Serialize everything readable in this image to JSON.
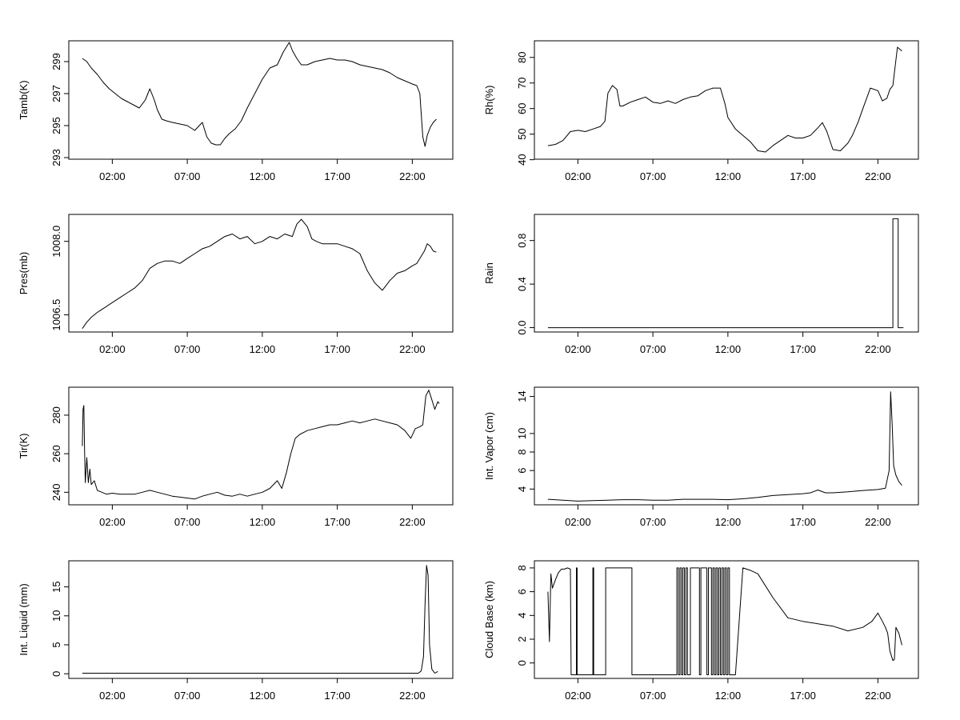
{
  "chart_data": [
    {
      "type": "line",
      "ylabel": "Tamb(K)",
      "xlabel": "",
      "x_ticks": [
        "02:00",
        "07:00",
        "12:00",
        "17:00",
        "22:00"
      ],
      "x_tick_hours": [
        2,
        7,
        12,
        17,
        22
      ],
      "xlim_hours": [
        -0.9,
        24.7
      ],
      "y_ticks": [
        "293",
        "295",
        "297",
        "299"
      ],
      "y_tick_values": [
        293,
        295,
        297,
        299
      ],
      "ylim": [
        292.9,
        300.3
      ],
      "series": [
        {
          "x": [
            0.0,
            0.3,
            0.6,
            1.0,
            1.4,
            1.8,
            2.2,
            2.6,
            3.0,
            3.4,
            3.8,
            4.2,
            4.5,
            4.8,
            5.0,
            5.3,
            5.6,
            6.0,
            6.5,
            7.0,
            7.5,
            8.0,
            8.3,
            8.6,
            8.9,
            9.2,
            9.5,
            9.8,
            10.2,
            10.6,
            11.0,
            11.5,
            12.0,
            12.5,
            13.0,
            13.4,
            13.8,
            14.0,
            14.3,
            14.6,
            15.0,
            15.5,
            16.0,
            16.5,
            17.0,
            17.5,
            18.0,
            18.5,
            19.0,
            19.5,
            20.0,
            20.5,
            21.0,
            21.5,
            22.0,
            22.3,
            22.5,
            22.7,
            22.85,
            23.0,
            23.2,
            23.4,
            23.6
          ],
          "y": [
            299.2,
            299.0,
            298.6,
            298.2,
            297.7,
            297.3,
            297.0,
            296.7,
            296.5,
            296.3,
            296.1,
            296.6,
            297.3,
            296.6,
            296.0,
            295.4,
            295.3,
            295.2,
            295.1,
            295.0,
            294.7,
            295.2,
            294.3,
            293.9,
            293.8,
            293.8,
            294.2,
            294.5,
            294.8,
            295.3,
            296.1,
            297.0,
            297.9,
            298.6,
            298.8,
            299.6,
            300.2,
            299.7,
            299.2,
            298.8,
            298.8,
            299.0,
            299.1,
            299.2,
            299.1,
            299.1,
            299.0,
            298.8,
            298.7,
            298.6,
            298.5,
            298.3,
            298.0,
            297.8,
            297.6,
            297.5,
            297.0,
            294.3,
            293.7,
            294.4,
            294.9,
            295.2,
            295.4
          ]
        }
      ]
    },
    {
      "type": "line",
      "ylabel": "Rh(%)",
      "xlabel": "",
      "x_ticks": [
        "02:00",
        "07:00",
        "12:00",
        "17:00",
        "22:00"
      ],
      "x_tick_hours": [
        2,
        7,
        12,
        17,
        22
      ],
      "xlim_hours": [
        -0.9,
        24.7
      ],
      "y_ticks": [
        "40",
        "50",
        "60",
        "70",
        "80"
      ],
      "y_tick_values": [
        40,
        50,
        60,
        70,
        80
      ],
      "ylim": [
        40.2,
        86.5
      ],
      "series": [
        {
          "x": [
            0.0,
            0.5,
            1.0,
            1.5,
            2.0,
            2.5,
            3.0,
            3.5,
            3.8,
            4.0,
            4.3,
            4.6,
            4.8,
            5.0,
            5.5,
            6.0,
            6.5,
            7.0,
            7.5,
            8.0,
            8.5,
            9.0,
            9.5,
            10.0,
            10.5,
            11.0,
            11.5,
            11.8,
            12.0,
            12.5,
            13.0,
            13.5,
            14.0,
            14.5,
            15.0,
            15.5,
            16.0,
            16.5,
            17.0,
            17.5,
            18.0,
            18.3,
            18.6,
            19.0,
            19.5,
            20.0,
            20.3,
            20.7,
            21.0,
            21.5,
            22.0,
            22.3,
            22.6,
            22.8,
            23.0,
            23.3,
            23.6
          ],
          "y": [
            45.5,
            46.0,
            47.5,
            51.0,
            51.5,
            51.0,
            52.0,
            53.0,
            55.0,
            66.0,
            69.0,
            67.5,
            61.0,
            61.0,
            62.5,
            63.5,
            64.5,
            62.5,
            62.0,
            63.0,
            62.0,
            63.5,
            64.5,
            65.0,
            67.0,
            68.0,
            68.0,
            62.0,
            56.5,
            52.0,
            49.5,
            47.0,
            43.5,
            43.0,
            45.5,
            47.5,
            49.5,
            48.5,
            48.5,
            49.5,
            52.5,
            54.5,
            51.0,
            44.0,
            43.5,
            46.5,
            49.5,
            55.0,
            60.0,
            68.0,
            67.0,
            63.0,
            64.0,
            67.5,
            69.0,
            84.0,
            82.5
          ]
        }
      ]
    },
    {
      "type": "line",
      "ylabel": "Pres(mb)",
      "xlabel": "",
      "x_ticks": [
        "02:00",
        "07:00",
        "12:00",
        "17:00",
        "22:00"
      ],
      "x_tick_hours": [
        2,
        7,
        12,
        17,
        22
      ],
      "xlim_hours": [
        -0.9,
        24.7
      ],
      "y_ticks": [
        "1006.5",
        "1008.0"
      ],
      "y_tick_values": [
        1006.5,
        1008.0
      ],
      "ylim": [
        1006.15,
        1008.55
      ],
      "series": [
        {
          "x": [
            0.0,
            0.3,
            0.6,
            1.0,
            1.5,
            2.0,
            2.5,
            3.0,
            3.5,
            4.0,
            4.5,
            5.0,
            5.5,
            6.0,
            6.5,
            7.0,
            7.5,
            8.0,
            8.5,
            9.0,
            9.5,
            10.0,
            10.5,
            11.0,
            11.5,
            12.0,
            12.5,
            13.0,
            13.5,
            14.0,
            14.3,
            14.6,
            15.0,
            15.3,
            15.6,
            16.0,
            16.5,
            17.0,
            17.5,
            18.0,
            18.5,
            19.0,
            19.5,
            20.0,
            20.5,
            21.0,
            21.5,
            22.0,
            22.3,
            22.6,
            22.8,
            23.0,
            23.2,
            23.4,
            23.6
          ],
          "y": [
            1006.22,
            1006.35,
            1006.45,
            1006.55,
            1006.65,
            1006.75,
            1006.85,
            1006.95,
            1007.05,
            1007.2,
            1007.45,
            1007.55,
            1007.6,
            1007.6,
            1007.55,
            1007.65,
            1007.75,
            1007.85,
            1007.9,
            1008.0,
            1008.1,
            1008.15,
            1008.05,
            1008.1,
            1007.95,
            1008.0,
            1008.1,
            1008.05,
            1008.15,
            1008.1,
            1008.35,
            1008.45,
            1008.3,
            1008.05,
            1008.0,
            1007.95,
            1007.95,
            1007.95,
            1007.9,
            1007.85,
            1007.75,
            1007.4,
            1007.15,
            1007.0,
            1007.2,
            1007.35,
            1007.4,
            1007.5,
            1007.55,
            1007.7,
            1007.8,
            1007.95,
            1007.9,
            1007.8,
            1007.78
          ]
        }
      ]
    },
    {
      "type": "line",
      "ylabel": "Rain",
      "xlabel": "",
      "x_ticks": [
        "02:00",
        "07:00",
        "12:00",
        "17:00",
        "22:00"
      ],
      "x_tick_hours": [
        2,
        7,
        12,
        17,
        22
      ],
      "xlim_hours": [
        -0.9,
        24.7
      ],
      "y_ticks": [
        "0.0",
        "0.4",
        "0.8"
      ],
      "y_tick_values": [
        0.0,
        0.4,
        0.8
      ],
      "ylim": [
        -0.04,
        1.04
      ],
      "series": [
        {
          "x": [
            0.0,
            23.0,
            23.0,
            23.35,
            23.35,
            23.7
          ],
          "y": [
            0,
            0,
            1,
            1,
            0,
            0
          ]
        }
      ]
    },
    {
      "type": "line",
      "ylabel": "Tir(K)",
      "xlabel": "",
      "x_ticks": [
        "02:00",
        "07:00",
        "12:00",
        "17:00",
        "22:00"
      ],
      "x_tick_hours": [
        2,
        7,
        12,
        17,
        22
      ],
      "xlim_hours": [
        -0.9,
        24.7
      ],
      "y_ticks": [
        "240",
        "260",
        "280"
      ],
      "y_tick_values": [
        240,
        260,
        280
      ],
      "ylim": [
        233.5,
        294.5
      ],
      "series": [
        {
          "x": [
            0.0,
            0.05,
            0.1,
            0.15,
            0.2,
            0.3,
            0.4,
            0.5,
            0.6,
            0.8,
            1.0,
            1.3,
            1.6,
            2.0,
            2.5,
            3.0,
            3.5,
            4.0,
            4.5,
            5.0,
            5.5,
            6.0,
            6.5,
            7.0,
            7.5,
            8.0,
            8.5,
            9.0,
            9.5,
            10.0,
            10.5,
            11.0,
            11.5,
            12.0,
            12.5,
            13.0,
            13.3,
            13.6,
            13.9,
            14.2,
            14.5,
            15.0,
            15.5,
            16.0,
            16.5,
            17.0,
            17.5,
            18.0,
            18.5,
            19.0,
            19.5,
            20.0,
            20.5,
            21.0,
            21.5,
            21.9,
            22.2,
            22.5,
            22.7,
            22.9,
            23.1,
            23.3,
            23.5,
            23.7,
            23.8
          ],
          "y": [
            264,
            283,
            285,
            262,
            245,
            258,
            245,
            252,
            244,
            246,
            241,
            240,
            239,
            239.5,
            239,
            239,
            239,
            240,
            241,
            240,
            239,
            238,
            237.5,
            237,
            236.5,
            238,
            239,
            240,
            238.5,
            238,
            239,
            238,
            239,
            240,
            242,
            246,
            242,
            250,
            260,
            268,
            270,
            272,
            273,
            274,
            275,
            275,
            276,
            277,
            276,
            277,
            278,
            277,
            276,
            275,
            272,
            268,
            273,
            274,
            275,
            290,
            293,
            288,
            283,
            287,
            286
          ]
        }
      ]
    },
    {
      "type": "line",
      "ylabel": "Int. Vapor (cm)",
      "xlabel": "",
      "x_ticks": [
        "02:00",
        "07:00",
        "12:00",
        "17:00",
        "22:00"
      ],
      "x_tick_hours": [
        2,
        7,
        12,
        17,
        22
      ],
      "xlim_hours": [
        -0.9,
        24.7
      ],
      "y_ticks": [
        "4",
        "6",
        "8",
        "10",
        "14"
      ],
      "y_tick_values": [
        4,
        6,
        8,
        10,
        14
      ],
      "ylim": [
        2.3,
        15.0
      ],
      "series": [
        {
          "x": [
            0.0,
            1.0,
            2.0,
            3.0,
            4.0,
            5.0,
            6.0,
            7.0,
            8.0,
            9.0,
            10.0,
            11.0,
            12.0,
            13.0,
            14.0,
            15.0,
            16.0,
            17.0,
            17.5,
            18.0,
            18.5,
            19.0,
            20.0,
            21.0,
            22.0,
            22.5,
            22.75,
            22.85,
            22.95,
            23.05,
            23.2,
            23.4,
            23.6
          ],
          "y": [
            2.9,
            2.8,
            2.7,
            2.75,
            2.8,
            2.85,
            2.85,
            2.8,
            2.8,
            2.9,
            2.9,
            2.9,
            2.85,
            2.95,
            3.1,
            3.3,
            3.4,
            3.5,
            3.6,
            3.9,
            3.6,
            3.6,
            3.7,
            3.85,
            3.95,
            4.1,
            6.0,
            14.5,
            11.0,
            6.5,
            5.5,
            4.8,
            4.4
          ]
        }
      ]
    },
    {
      "type": "line",
      "ylabel": "Int. Liquid (mm)",
      "xlabel": "",
      "x_ticks": [
        "02:00",
        "07:00",
        "12:00",
        "17:00",
        "22:00"
      ],
      "x_tick_hours": [
        2,
        7,
        12,
        17,
        22
      ],
      "xlim_hours": [
        -0.9,
        24.7
      ],
      "y_ticks": [
        "0",
        "5",
        "10",
        "15"
      ],
      "y_tick_values": [
        0,
        5,
        10,
        15
      ],
      "ylim": [
        -0.8,
        19.5
      ],
      "series": [
        {
          "x": [
            0.0,
            22.4,
            22.6,
            22.75,
            22.85,
            22.95,
            23.05,
            23.15,
            23.3,
            23.5,
            23.7
          ],
          "y": [
            0.1,
            0.1,
            0.5,
            3.0,
            12.0,
            18.7,
            17.0,
            5.0,
            0.8,
            0.1,
            0.4
          ]
        }
      ]
    },
    {
      "type": "line",
      "ylabel": "Cloud Base (km)",
      "xlabel": "",
      "x_ticks": [
        "02:00",
        "07:00",
        "12:00",
        "17:00",
        "22:00"
      ],
      "x_tick_hours": [
        2,
        7,
        12,
        17,
        22
      ],
      "xlim_hours": [
        -0.9,
        24.7
      ],
      "y_ticks": [
        "0",
        "2",
        "4",
        "6",
        "8"
      ],
      "y_tick_values": [
        0,
        2,
        4,
        6,
        8
      ],
      "ylim": [
        -1.3,
        8.6
      ],
      "series": [
        {
          "x": [
            0.0,
            0.1,
            0.2,
            0.3,
            0.5,
            0.7,
            0.9,
            1.1,
            1.3,
            1.5,
            1.55,
            1.9,
            1.9,
            1.95,
            1.95,
            3.0,
            3.0,
            3.05,
            3.05,
            3.85,
            3.85,
            5.6,
            5.6,
            8.6,
            8.6,
            8.7,
            8.7,
            8.8,
            8.8,
            8.9,
            8.9,
            9.0,
            9.0,
            9.1,
            9.1,
            9.2,
            9.2,
            9.3,
            9.3,
            9.5,
            9.5,
            10.1,
            10.1,
            10.2,
            10.2,
            10.6,
            10.6,
            10.7,
            10.7,
            10.9,
            10.9,
            11.0,
            11.0,
            11.1,
            11.1,
            11.2,
            11.2,
            11.3,
            11.3,
            11.4,
            11.4,
            11.5,
            11.5,
            11.6,
            11.6,
            11.7,
            11.7,
            11.8,
            11.8,
            11.9,
            11.9,
            12.0,
            12.0,
            12.1,
            12.1,
            12.5,
            13.0,
            13.5,
            14.0,
            15.0,
            16.0,
            17.0,
            18.0,
            19.0,
            20.0,
            21.0,
            21.6,
            22.0,
            22.3,
            22.5,
            22.65,
            22.8,
            23.0,
            23.1,
            23.2,
            23.4,
            23.6
          ],
          "y": [
            6.0,
            1.8,
            7.5,
            6.3,
            7.0,
            7.6,
            7.9,
            7.9,
            8.0,
            7.9,
            -1,
            -1,
            8,
            8,
            -1,
            -1,
            8,
            8,
            -1,
            -1,
            8,
            8,
            -1,
            -1,
            8,
            8,
            -1,
            -1,
            8,
            8,
            -1,
            -1,
            8,
            8,
            -1,
            -1,
            8,
            8,
            -1,
            -1,
            8,
            8,
            -1,
            -1,
            8,
            8,
            -1,
            -1,
            8,
            8,
            -1,
            -1,
            8,
            8,
            -1,
            -1,
            8,
            8,
            -1,
            -1,
            8,
            8,
            -1,
            -1,
            8,
            8,
            -1,
            -1,
            8,
            8,
            -1,
            -1,
            8,
            8,
            -1,
            -1,
            8,
            7.8,
            7.5,
            5.5,
            3.8,
            3.5,
            3.3,
            3.1,
            2.7,
            3.0,
            3.5,
            4.2,
            3.5,
            3.0,
            2.5,
            1.0,
            0.2,
            0.3,
            3.0,
            2.5,
            1.5
          ]
        }
      ]
    }
  ]
}
